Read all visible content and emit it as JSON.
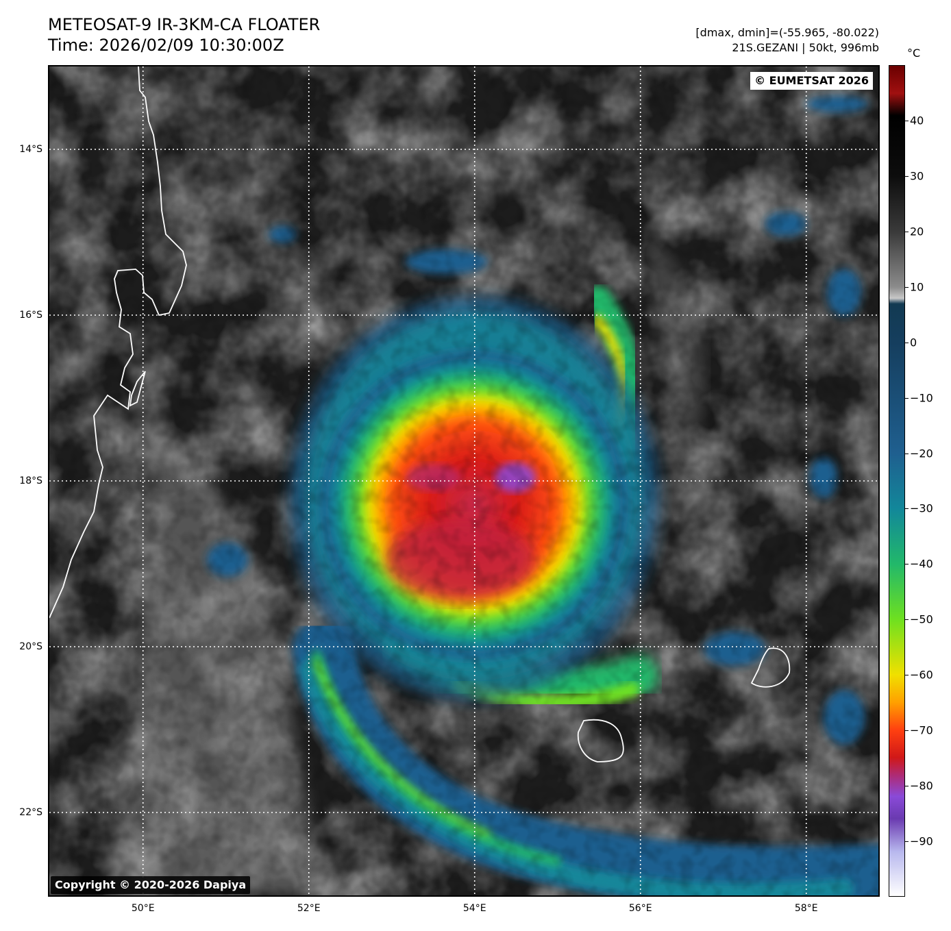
{
  "header": {
    "title": "METEOSAT-9 IR-3KM-CA FLOATER",
    "time": "Time: 2026/02/09 10:30:00Z",
    "range": "[dmax, dmin]=(-55.965, -80.022)",
    "storm": "21S.GEZANI | 50kt, 996mb"
  },
  "map": {
    "type": "satellite infrared brightness temperature",
    "lon_range": [
      48.87,
      58.87
    ],
    "lat_range": [
      -23.0,
      -13.0
    ],
    "gridlines": "dotted white",
    "lat_labels": [
      {
        "value": -14,
        "label": "14°S"
      },
      {
        "value": -16,
        "label": "16°S"
      },
      {
        "value": -18,
        "label": "18°S"
      },
      {
        "value": -20,
        "label": "20°S"
      },
      {
        "value": -22,
        "label": "22°S"
      }
    ],
    "lon_labels": [
      {
        "value": 50,
        "label": "50°E"
      },
      {
        "value": 52,
        "label": "52°E"
      },
      {
        "value": 54,
        "label": "54°E"
      },
      {
        "value": 56,
        "label": "56°E"
      },
      {
        "value": 58,
        "label": "58°E"
      }
    ],
    "storm_center": {
      "lon": 54.0,
      "lat": -18.1
    },
    "coastlines": [
      "Madagascar east coast",
      "Île Sainte-Marie",
      "Réunion",
      "Mauritius"
    ],
    "copyright_top": "© EUMETSAT 2026",
    "copyright_bottom": "Copyright © 2020-2026 Dapiya"
  },
  "colorbar": {
    "unit": "°C",
    "range": [
      -100,
      50
    ],
    "ticks": [
      {
        "value": 40,
        "label": "40"
      },
      {
        "value": 30,
        "label": "30"
      },
      {
        "value": 20,
        "label": "20"
      },
      {
        "value": 10,
        "label": "10"
      },
      {
        "value": 0,
        "label": "0"
      },
      {
        "value": -10,
        "label": "−10"
      },
      {
        "value": -20,
        "label": "−20"
      },
      {
        "value": -30,
        "label": "−30"
      },
      {
        "value": -40,
        "label": "−40"
      },
      {
        "value": -50,
        "label": "−50"
      },
      {
        "value": -60,
        "label": "−60"
      },
      {
        "value": -70,
        "label": "−70"
      },
      {
        "value": -80,
        "label": "−80"
      },
      {
        "value": -90,
        "label": "−90"
      }
    ],
    "stops": [
      {
        "value": 50,
        "color": "#6a0000"
      },
      {
        "value": 45,
        "color": "#a01010"
      },
      {
        "value": 41,
        "color": "#000000"
      },
      {
        "value": 30,
        "color": "#0d0d0d"
      },
      {
        "value": 20,
        "color": "#3a3a3a"
      },
      {
        "value": 10,
        "color": "#8c8c8c"
      },
      {
        "value": 8,
        "color": "#c8c8c8"
      },
      {
        "value": 7,
        "color": "#123a52"
      },
      {
        "value": 0,
        "color": "#153e5e"
      },
      {
        "value": -20,
        "color": "#1f5f8f"
      },
      {
        "value": -30,
        "color": "#12879a"
      },
      {
        "value": -40,
        "color": "#22b86a"
      },
      {
        "value": -50,
        "color": "#6ee020"
      },
      {
        "value": -60,
        "color": "#f0e000"
      },
      {
        "value": -65,
        "color": "#ffa000"
      },
      {
        "value": -70,
        "color": "#ff4010"
      },
      {
        "value": -75,
        "color": "#d01818"
      },
      {
        "value": -78,
        "color": "#b02a70"
      },
      {
        "value": -82,
        "color": "#8a4ad8"
      },
      {
        "value": -86,
        "color": "#6a3ab0"
      },
      {
        "value": -92,
        "color": "#b8b8ee"
      },
      {
        "value": -100,
        "color": "#ffffff"
      }
    ]
  }
}
